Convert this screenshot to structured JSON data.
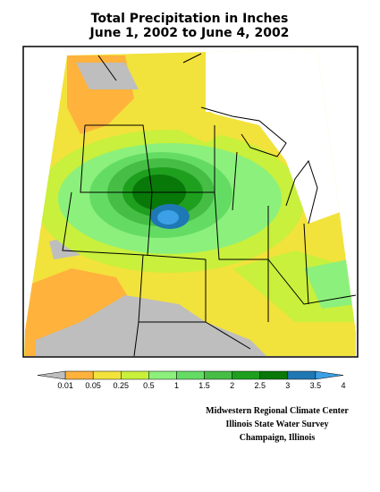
{
  "title": [
    "Total Precipitation in Inches",
    "June 1, 2002 to June 4, 2002"
  ],
  "legend": {
    "labels": [
      "0.01",
      "0.05",
      "0.25",
      "0.5",
      "1",
      "1.5",
      "2",
      "2.5",
      "3",
      "3.5",
      "4"
    ],
    "colors": [
      "#bebebe",
      "#ffb23c",
      "#f2e23c",
      "#c8f03c",
      "#8cf07c",
      "#64dc64",
      "#46be46",
      "#1ea01e",
      "#087808",
      "#1e78b4",
      "#3ca0e6"
    ]
  },
  "credits": [
    "Midwestern Regional Climate Center",
    "Illinois State Water Survey",
    "Champaign, Illinois"
  ]
}
